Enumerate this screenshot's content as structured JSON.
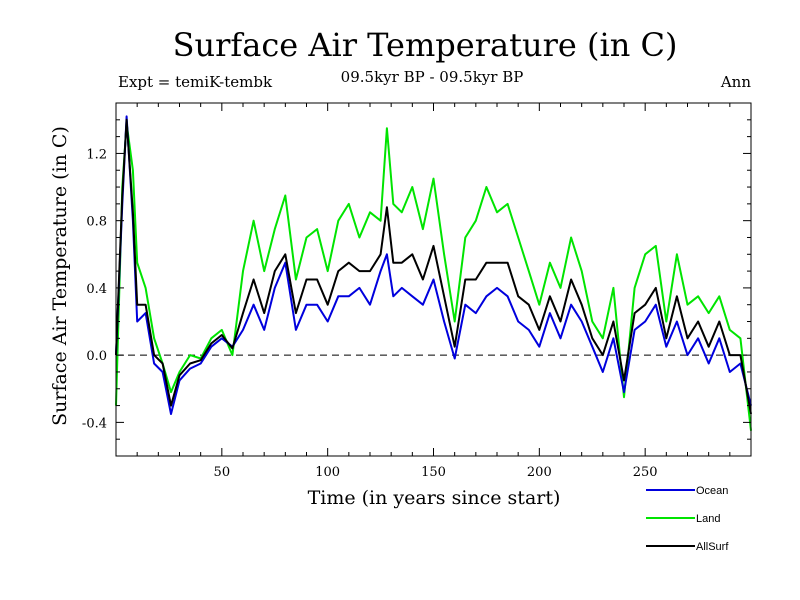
{
  "chart_data": {
    "type": "line",
    "title": "Surface Air Temperature (in C)",
    "subtitle_left": "Expt = temiK-tembk",
    "subtitle_center": "09.5kyr BP - 09.5kyr BP",
    "subtitle_right": "Ann",
    "xlabel": "Time (in years since start)",
    "ylabel": "Surface Air Temperature (in C)",
    "xlim": [
      0,
      300
    ],
    "ylim": [
      -0.6,
      1.5
    ],
    "xticks": [
      50,
      100,
      150,
      200,
      250
    ],
    "xtick_labels": [
      "50",
      "100",
      "150",
      "200",
      "250"
    ],
    "yticks": [
      -0.4,
      0.0,
      0.4,
      0.8,
      1.2
    ],
    "ytick_labels": [
      "-0.4",
      "0.0",
      "0.4",
      "0.8",
      "1.2"
    ],
    "reference_line": 0.0,
    "legend_position": "bottom-right",
    "series": [
      {
        "name": "Ocean",
        "color": "#0000dd",
        "x": [
          0,
          3,
          5,
          8,
          10,
          14,
          18,
          22,
          26,
          30,
          35,
          40,
          45,
          50,
          55,
          60,
          65,
          70,
          75,
          80,
          85,
          90,
          95,
          100,
          105,
          110,
          115,
          120,
          125,
          128,
          131,
          135,
          140,
          145,
          150,
          155,
          160,
          165,
          170,
          175,
          180,
          185,
          190,
          195,
          200,
          205,
          210,
          215,
          220,
          225,
          230,
          235,
          240,
          245,
          250,
          255,
          260,
          265,
          270,
          275,
          280,
          285,
          290,
          295,
          300
        ],
        "values": [
          0.0,
          0.9,
          1.42,
          0.8,
          0.2,
          0.25,
          -0.05,
          -0.1,
          -0.35,
          -0.15,
          -0.08,
          -0.05,
          0.05,
          0.1,
          0.05,
          0.15,
          0.3,
          0.15,
          0.4,
          0.55,
          0.15,
          0.3,
          0.3,
          0.2,
          0.35,
          0.35,
          0.4,
          0.3,
          0.5,
          0.6,
          0.35,
          0.4,
          0.35,
          0.3,
          0.45,
          0.2,
          -0.02,
          0.3,
          0.25,
          0.35,
          0.4,
          0.35,
          0.2,
          0.15,
          0.05,
          0.25,
          0.1,
          0.3,
          0.2,
          0.05,
          -0.1,
          0.1,
          -0.22,
          0.15,
          0.2,
          0.3,
          0.05,
          0.2,
          0.0,
          0.1,
          -0.05,
          0.1,
          -0.1,
          -0.05,
          -0.3
        ]
      },
      {
        "name": "Land",
        "color": "#00e400",
        "x": [
          0,
          3,
          5,
          8,
          10,
          14,
          18,
          22,
          26,
          30,
          35,
          40,
          45,
          50,
          55,
          60,
          65,
          70,
          75,
          80,
          85,
          90,
          95,
          100,
          105,
          110,
          115,
          120,
          125,
          128,
          131,
          135,
          140,
          145,
          150,
          155,
          160,
          165,
          170,
          175,
          180,
          185,
          190,
          195,
          200,
          205,
          210,
          215,
          220,
          225,
          230,
          235,
          240,
          245,
          250,
          255,
          260,
          265,
          270,
          275,
          280,
          285,
          290,
          295,
          300
        ],
        "values": [
          -0.3,
          1.0,
          1.38,
          1.1,
          0.55,
          0.4,
          0.1,
          -0.05,
          -0.22,
          -0.1,
          0.0,
          -0.02,
          0.1,
          0.15,
          0.0,
          0.5,
          0.8,
          0.5,
          0.75,
          0.95,
          0.45,
          0.7,
          0.75,
          0.5,
          0.8,
          0.9,
          0.7,
          0.85,
          0.8,
          1.35,
          0.9,
          0.85,
          1.0,
          0.75,
          1.05,
          0.6,
          0.2,
          0.7,
          0.8,
          1.0,
          0.85,
          0.9,
          0.7,
          0.5,
          0.3,
          0.55,
          0.4,
          0.7,
          0.5,
          0.2,
          0.1,
          0.4,
          -0.25,
          0.4,
          0.6,
          0.65,
          0.2,
          0.6,
          0.3,
          0.35,
          0.25,
          0.35,
          0.15,
          0.1,
          -0.45
        ]
      },
      {
        "name": "AllSurf",
        "color": "#000000",
        "x": [
          0,
          3,
          5,
          8,
          10,
          14,
          18,
          22,
          26,
          30,
          35,
          40,
          45,
          50,
          55,
          60,
          65,
          70,
          75,
          80,
          85,
          90,
          95,
          100,
          105,
          110,
          115,
          120,
          125,
          128,
          131,
          135,
          140,
          145,
          150,
          155,
          160,
          165,
          170,
          175,
          180,
          185,
          190,
          195,
          200,
          205,
          210,
          215,
          220,
          225,
          230,
          235,
          240,
          245,
          250,
          255,
          260,
          265,
          270,
          275,
          280,
          285,
          290,
          295,
          300
        ],
        "values": [
          0.0,
          0.95,
          1.4,
          0.85,
          0.3,
          0.3,
          0.0,
          -0.05,
          -0.3,
          -0.12,
          -0.05,
          -0.03,
          0.07,
          0.12,
          0.04,
          0.25,
          0.45,
          0.25,
          0.5,
          0.6,
          0.25,
          0.45,
          0.45,
          0.3,
          0.5,
          0.55,
          0.5,
          0.5,
          0.6,
          0.88,
          0.55,
          0.55,
          0.6,
          0.45,
          0.65,
          0.35,
          0.05,
          0.45,
          0.45,
          0.55,
          0.55,
          0.55,
          0.35,
          0.3,
          0.15,
          0.35,
          0.2,
          0.45,
          0.3,
          0.1,
          0.0,
          0.2,
          -0.15,
          0.25,
          0.3,
          0.4,
          0.1,
          0.35,
          0.1,
          0.2,
          0.05,
          0.2,
          0.0,
          0.0,
          -0.35
        ]
      }
    ]
  }
}
